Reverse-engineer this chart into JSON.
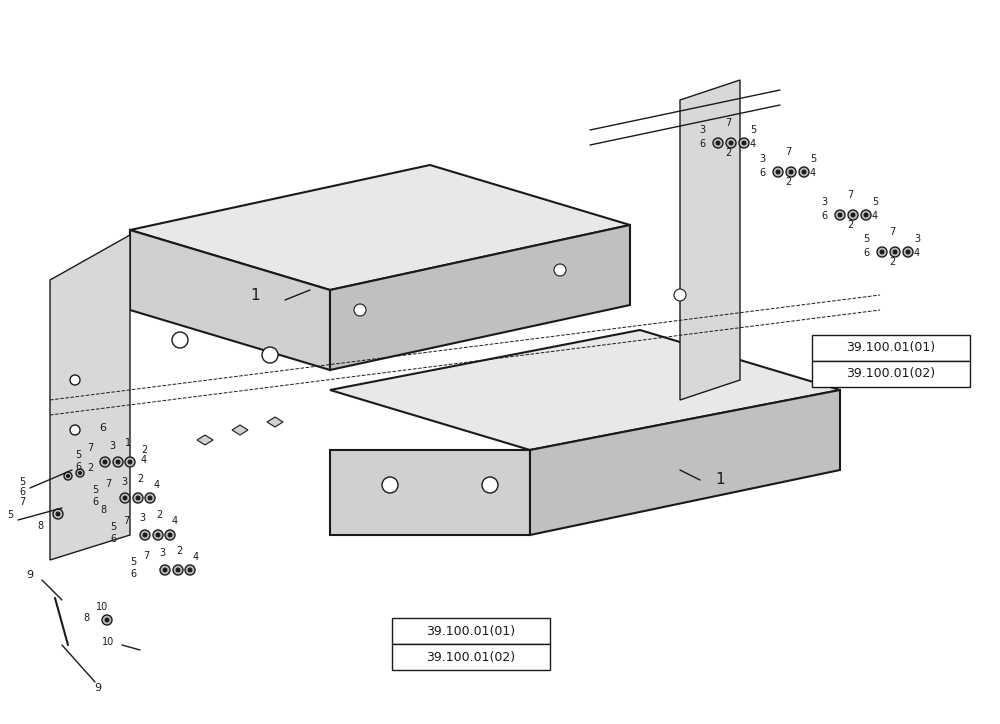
{
  "background_color": "#ffffff",
  "figure_width": 10.0,
  "figure_height": 7.24,
  "dpi": 100,
  "line_color": "#1a1a1a",
  "ref_labels_bottom": [
    "39.100.01(01)",
    "39.100.01(02)"
  ],
  "ref_labels_right": [
    "39.100.01(01)",
    "39.100.01(02)"
  ],
  "part_label": "1"
}
